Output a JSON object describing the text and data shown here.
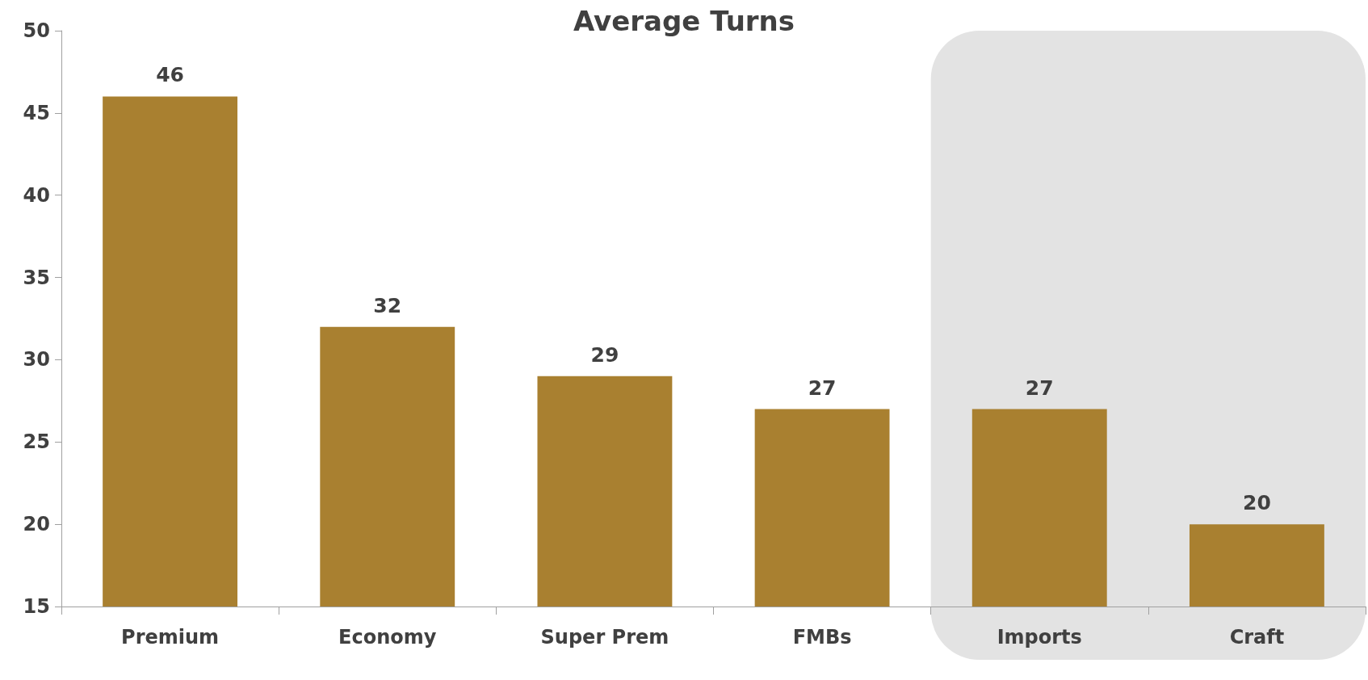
{
  "chart_data": {
    "type": "bar",
    "title": "Average Turns",
    "categories": [
      "Premium",
      "Economy",
      "Super Prem",
      "FMBs",
      "Imports",
      "Craft"
    ],
    "values": [
      46,
      32,
      29,
      27,
      27,
      20
    ],
    "color": "#a98030",
    "ylim": [
      15,
      50
    ],
    "yticks": [
      15,
      20,
      25,
      30,
      35,
      40,
      45,
      50
    ],
    "grid": false,
    "data_labels": true,
    "bands": [
      {
        "axis": "x",
        "from": "Imports",
        "to": "Craft",
        "color": "#e3e3e3"
      }
    ]
  }
}
